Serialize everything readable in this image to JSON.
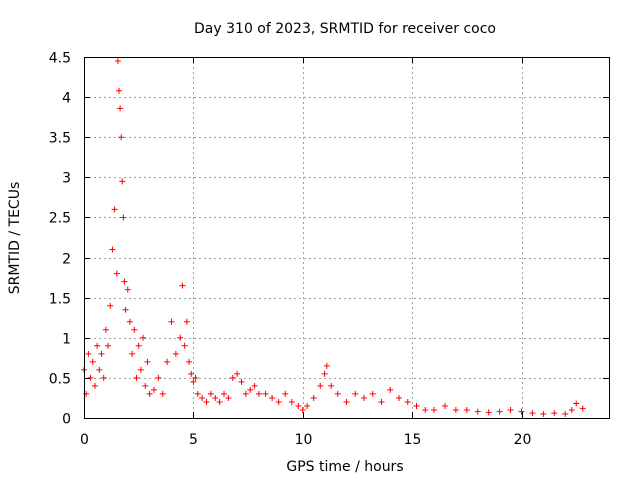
{
  "chart_data": {
    "type": "scatter",
    "title": "Day 310 of 2023, SRMTID for receiver coco",
    "xlabel": "GPS time / hours",
    "ylabel": "SRMTID / TECUs",
    "xlim": [
      0,
      24
    ],
    "ylim": [
      0,
      4.5
    ],
    "x_ticks": [
      0,
      5,
      10,
      15,
      20
    ],
    "x_tick_labels": [
      "0",
      "5",
      "10",
      "15",
      "20"
    ],
    "y_ticks": [
      0,
      0.5,
      1,
      1.5,
      2,
      2.5,
      3,
      3.5,
      4,
      4.5
    ],
    "y_tick_labels": [
      "0",
      "0.5",
      "1",
      "1.5",
      "2",
      "2.5",
      "3",
      "3.5",
      "4",
      "4.5"
    ],
    "grid": true,
    "marker": "+",
    "color": "#ff0000",
    "series": [
      {
        "name": "SRMTID",
        "x": [
          0.0,
          0.1,
          0.2,
          0.3,
          0.4,
          0.5,
          0.6,
          0.7,
          0.8,
          0.9,
          1.0,
          1.1,
          1.2,
          1.3,
          1.4,
          1.5,
          1.55,
          1.6,
          1.65,
          1.7,
          1.75,
          1.8,
          1.85,
          1.9,
          2.0,
          2.1,
          2.2,
          2.3,
          2.4,
          2.5,
          2.6,
          2.7,
          2.8,
          2.9,
          3.0,
          3.2,
          3.4,
          3.6,
          3.8,
          4.0,
          4.2,
          4.4,
          4.5,
          4.6,
          4.7,
          4.8,
          4.9,
          5.0,
          5.1,
          5.2,
          5.4,
          5.6,
          5.8,
          6.0,
          6.2,
          6.4,
          6.6,
          6.8,
          7.0,
          7.2,
          7.4,
          7.6,
          7.8,
          8.0,
          8.3,
          8.6,
          8.9,
          9.2,
          9.5,
          9.8,
          10.0,
          10.2,
          10.5,
          10.8,
          11.0,
          11.1,
          11.3,
          11.6,
          12.0,
          12.4,
          12.8,
          13.2,
          13.6,
          14.0,
          14.4,
          14.8,
          15.2,
          15.6,
          16.0,
          16.5,
          17.0,
          17.5,
          18.0,
          18.5,
          19.0,
          19.5,
          20.0,
          20.5,
          21.0,
          21.5,
          22.0,
          22.3,
          22.5,
          22.8
        ],
        "y": [
          0.6,
          0.3,
          0.8,
          0.5,
          0.7,
          0.4,
          0.9,
          0.6,
          0.8,
          0.5,
          1.1,
          0.9,
          1.4,
          2.1,
          2.6,
          1.8,
          4.45,
          4.08,
          3.86,
          3.5,
          2.95,
          2.5,
          1.7,
          1.35,
          1.6,
          1.2,
          0.8,
          1.1,
          0.5,
          0.9,
          0.6,
          1.0,
          0.4,
          0.7,
          0.3,
          0.35,
          0.5,
          0.3,
          0.7,
          1.2,
          0.8,
          1.0,
          1.65,
          0.9,
          1.2,
          0.7,
          0.55,
          0.45,
          0.5,
          0.3,
          0.25,
          0.2,
          0.3,
          0.25,
          0.2,
          0.3,
          0.25,
          0.5,
          0.55,
          0.45,
          0.3,
          0.35,
          0.4,
          0.3,
          0.3,
          0.25,
          0.2,
          0.3,
          0.2,
          0.15,
          0.1,
          0.15,
          0.25,
          0.4,
          0.55,
          0.65,
          0.4,
          0.3,
          0.2,
          0.3,
          0.25,
          0.3,
          0.2,
          0.35,
          0.25,
          0.2,
          0.15,
          0.1,
          0.1,
          0.15,
          0.1,
          0.1,
          0.08,
          0.07,
          0.08,
          0.1,
          0.08,
          0.06,
          0.05,
          0.06,
          0.05,
          0.1,
          0.18,
          0.12
        ]
      }
    ]
  }
}
